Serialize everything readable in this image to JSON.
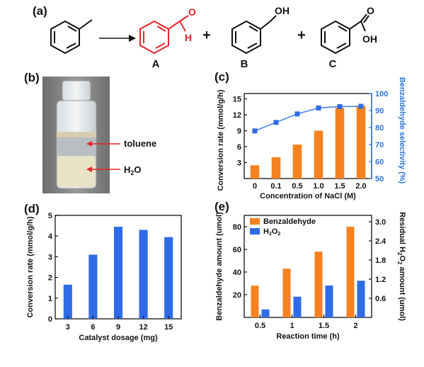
{
  "labels": {
    "a": "(a)",
    "b": "(b)",
    "c": "(c)",
    "d": "(d)",
    "e": "(e)"
  },
  "reaction": {
    "products": [
      "A",
      "B",
      "C"
    ],
    "plus": "+",
    "oh_b": "OH",
    "o_c": "O",
    "oh_c": "OH",
    "o_a": "O",
    "h_a": "H",
    "product_a_color": "#e8232a"
  },
  "photo": {
    "upper_layer": "toluene",
    "lower_layer": "H",
    "lower_sub": "2",
    "lower_suffix": "O",
    "arrow_color": "#e8232a"
  },
  "colors": {
    "orange": "#f58220",
    "blue": "#2e6be6",
    "selectivity_line": "#4a86e8",
    "selectivity_axis": "#2e74d8"
  },
  "chart_data": [
    {
      "panel": "(c)",
      "type": "bar",
      "categories": [
        "0",
        "0.1",
        "0.5",
        "1.0",
        "1.5",
        "2.0"
      ],
      "series": [
        {
          "values": [
            2.5,
            4.0,
            6.4,
            9.0,
            13.3,
            13.7
          ],
          "axis": "left"
        },
        {
          "values": [
            78,
            83,
            88,
            91.5,
            92.3,
            92.5
          ],
          "axis": "right",
          "render": "line-square"
        }
      ],
      "xlabel": "Concentration of NaCl (M)",
      "ylabel": "Conversion rate (mmol/g/h)",
      "y2label": "Benzaldehyde selectivity (%)",
      "ylim": [
        0,
        16
      ],
      "yticks": [
        "3",
        "6",
        "9",
        "12",
        "15"
      ],
      "y2lim": [
        50,
        100
      ],
      "y2ticks": [
        "50",
        "60",
        "70",
        "80",
        "90",
        "100"
      ]
    },
    {
      "panel": "(d)",
      "type": "bar",
      "categories": [
        "3",
        "6",
        "9",
        "12",
        "15"
      ],
      "values": [
        1.65,
        3.1,
        4.45,
        4.3,
        3.95
      ],
      "xlabel": "Catalyst dosage (mg)",
      "ylabel": "Conversion rate (mmol/g/h)",
      "ylim": [
        0,
        5
      ],
      "yticks": [
        "0",
        "1",
        "2",
        "3",
        "4",
        "5"
      ]
    },
    {
      "panel": "(e)",
      "type": "bar",
      "categories": [
        "0.5",
        "1",
        "1.5",
        "2"
      ],
      "series": [
        {
          "name": "Benzaldehyde",
          "values": [
            28,
            43,
            58,
            80
          ],
          "axis": "left"
        },
        {
          "name": "H2O2",
          "values": [
            0.25,
            0.65,
            1.0,
            1.15
          ],
          "axis": "right"
        }
      ],
      "legend": {
        "name1": "Benzaldehyde",
        "name2_main": "H",
        "name2_sub": "2",
        "name2_mid": "O",
        "name2_sub2": "2"
      },
      "xlabel": "Reaction time (h)",
      "ylabel": "Benzaldehyde amount (umol)",
      "y2label_parts": [
        "Residual H",
        "2",
        "O",
        "2",
        " amount (umol)"
      ],
      "ylim": [
        0,
        90
      ],
      "yticks": [
        "20",
        "40",
        "60",
        "80"
      ],
      "y2lim": [
        0,
        3.2
      ],
      "y2ticks": [
        "0.6",
        "1.2",
        "1.8",
        "2.4",
        "3.0"
      ]
    }
  ]
}
